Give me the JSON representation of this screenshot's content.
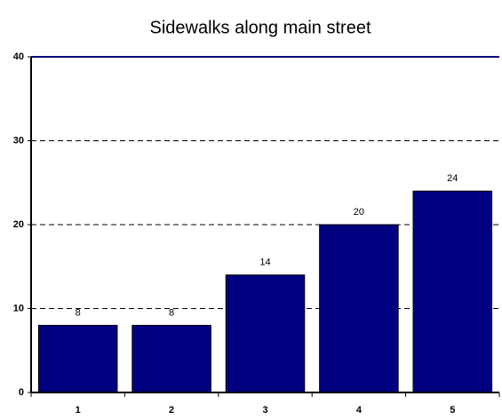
{
  "chart_data": {
    "type": "bar",
    "title": "Sidewalks along main street",
    "categories": [
      "1",
      "2",
      "3",
      "4",
      "5"
    ],
    "values": [
      8,
      8,
      14,
      20,
      24
    ],
    "color": "#000080",
    "ylim": [
      0,
      40
    ],
    "yticks": [
      0,
      10,
      20,
      30,
      40
    ],
    "grid": true
  }
}
